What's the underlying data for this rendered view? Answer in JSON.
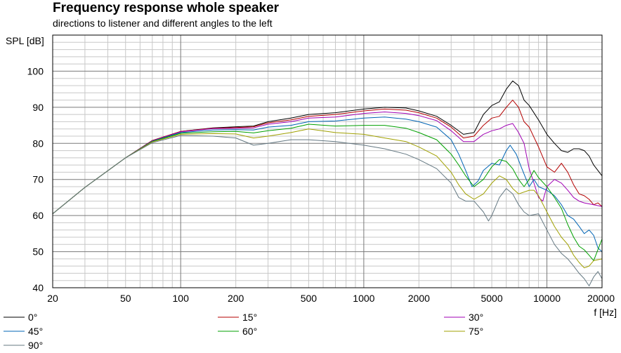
{
  "header": {
    "title": "Frequency response whole speaker",
    "subtitle": "directions to listener and different angles to the left"
  },
  "chart_data": {
    "type": "line",
    "title": "Frequency response whole speaker",
    "subtitle": "directions to listener and different angles to the left",
    "xlabel": "f [Hz]",
    "ylabel": "SPL [dB]",
    "xscale": "log",
    "xlim": [
      20,
      20000
    ],
    "ylim": [
      40,
      110
    ],
    "grid": true,
    "legend_position": "bottom",
    "x_tick_labels": [
      "20",
      "50",
      "100",
      "200",
      "500",
      "1000",
      "2000",
      "5000",
      "10000",
      "20000"
    ],
    "y_tick_labels": [
      "40",
      "50",
      "60",
      "70",
      "80",
      "90",
      "100"
    ],
    "series": [
      {
        "name": "0°",
        "color": "#000000",
        "points": [
          [
            20,
            60.5
          ],
          [
            30,
            67.8
          ],
          [
            50,
            76
          ],
          [
            70,
            80.8
          ],
          [
            100,
            83.3
          ],
          [
            150,
            84.3
          ],
          [
            200,
            84.6
          ],
          [
            250,
            84.8
          ],
          [
            300,
            86
          ],
          [
            400,
            87
          ],
          [
            500,
            88
          ],
          [
            700,
            88.5
          ],
          [
            1000,
            89.5
          ],
          [
            1300,
            90
          ],
          [
            1700,
            89.8
          ],
          [
            2000,
            89
          ],
          [
            2500,
            87.5
          ],
          [
            3000,
            85
          ],
          [
            3500,
            82.5
          ],
          [
            4000,
            83
          ],
          [
            4500,
            88
          ],
          [
            5000,
            90.5
          ],
          [
            5500,
            91.5
          ],
          [
            6000,
            95
          ],
          [
            6500,
            97.3
          ],
          [
            7000,
            96
          ],
          [
            7500,
            92
          ],
          [
            8000,
            90.5
          ],
          [
            9000,
            86.5
          ],
          [
            10000,
            82.5
          ],
          [
            11000,
            80
          ],
          [
            12000,
            78
          ],
          [
            13000,
            77.5
          ],
          [
            14000,
            78.5
          ],
          [
            15000,
            78.5
          ],
          [
            16000,
            78
          ],
          [
            17000,
            76.5
          ],
          [
            18000,
            74
          ],
          [
            20000,
            71
          ]
        ]
      },
      {
        "name": "15°",
        "color": "#b40000",
        "points": [
          [
            20,
            60.5
          ],
          [
            30,
            67.8
          ],
          [
            50,
            76
          ],
          [
            70,
            80.8
          ],
          [
            100,
            83.3
          ],
          [
            150,
            84.2
          ],
          [
            200,
            84.4
          ],
          [
            250,
            84.6
          ],
          [
            300,
            85.7
          ],
          [
            400,
            86.5
          ],
          [
            500,
            87.5
          ],
          [
            700,
            88
          ],
          [
            1000,
            89
          ],
          [
            1300,
            89.5
          ],
          [
            1700,
            89.2
          ],
          [
            2000,
            88.5
          ],
          [
            2500,
            87
          ],
          [
            3000,
            84.5
          ],
          [
            3500,
            81.5
          ],
          [
            4000,
            82
          ],
          [
            4500,
            85
          ],
          [
            5000,
            87
          ],
          [
            5500,
            87.5
          ],
          [
            6000,
            90
          ],
          [
            6500,
            92
          ],
          [
            7000,
            90
          ],
          [
            7500,
            86
          ],
          [
            8000,
            84.5
          ],
          [
            9000,
            79
          ],
          [
            10000,
            73.5
          ],
          [
            11000,
            72
          ],
          [
            12000,
            74.5
          ],
          [
            13000,
            72
          ],
          [
            14000,
            68.5
          ],
          [
            15000,
            66
          ],
          [
            16000,
            65.5
          ],
          [
            17000,
            64.5
          ],
          [
            18000,
            63
          ],
          [
            19000,
            63.5
          ],
          [
            20000,
            62.5
          ]
        ]
      },
      {
        "name": "30°",
        "color": "#a000b4",
        "points": [
          [
            20,
            60.5
          ],
          [
            30,
            67.8
          ],
          [
            50,
            76
          ],
          [
            70,
            80.7
          ],
          [
            100,
            83.2
          ],
          [
            150,
            84.1
          ],
          [
            200,
            84.2
          ],
          [
            250,
            84.3
          ],
          [
            300,
            85.3
          ],
          [
            400,
            86
          ],
          [
            500,
            87
          ],
          [
            700,
            87.3
          ],
          [
            1000,
            88.3
          ],
          [
            1300,
            88.7
          ],
          [
            1700,
            88.3
          ],
          [
            2000,
            87.7
          ],
          [
            2500,
            86.3
          ],
          [
            3000,
            83.5
          ],
          [
            3500,
            80.5
          ],
          [
            4000,
            80.5
          ],
          [
            4500,
            82.5
          ],
          [
            5000,
            83.5
          ],
          [
            5500,
            84
          ],
          [
            6000,
            85
          ],
          [
            6500,
            85.5
          ],
          [
            7000,
            83
          ],
          [
            7500,
            80
          ],
          [
            8000,
            73
          ],
          [
            8500,
            69
          ],
          [
            9000,
            65
          ],
          [
            9500,
            64
          ],
          [
            10000,
            68
          ],
          [
            11000,
            70
          ],
          [
            12000,
            69
          ],
          [
            13000,
            67
          ],
          [
            14000,
            65
          ],
          [
            15000,
            64
          ],
          [
            16000,
            63.5
          ],
          [
            18000,
            63
          ],
          [
            20000,
            62.5
          ]
        ]
      },
      {
        "name": "45°",
        "color": "#0064b4",
        "points": [
          [
            20,
            60.5
          ],
          [
            30,
            67.8
          ],
          [
            50,
            76
          ],
          [
            70,
            80.6
          ],
          [
            100,
            83
          ],
          [
            150,
            83.7
          ],
          [
            200,
            83.8
          ],
          [
            250,
            83.7
          ],
          [
            300,
            84.5
          ],
          [
            400,
            85
          ],
          [
            500,
            86
          ],
          [
            700,
            86.2
          ],
          [
            1000,
            87
          ],
          [
            1300,
            87.3
          ],
          [
            1700,
            86.7
          ],
          [
            2000,
            86
          ],
          [
            2500,
            84.5
          ],
          [
            3000,
            81
          ],
          [
            3300,
            77
          ],
          [
            3600,
            72.5
          ],
          [
            3900,
            68
          ],
          [
            4200,
            69.5
          ],
          [
            4500,
            72.5
          ],
          [
            5000,
            74.5
          ],
          [
            5500,
            74
          ],
          [
            6000,
            78
          ],
          [
            6300,
            79.5
          ],
          [
            6800,
            77
          ],
          [
            7300,
            73
          ],
          [
            8000,
            68
          ],
          [
            8500,
            70
          ],
          [
            9000,
            68
          ],
          [
            10000,
            67
          ],
          [
            11000,
            65.5
          ],
          [
            12000,
            63
          ],
          [
            13000,
            60
          ],
          [
            14000,
            59
          ],
          [
            15000,
            57
          ],
          [
            16000,
            55
          ],
          [
            17000,
            56
          ],
          [
            18000,
            54.5
          ],
          [
            19000,
            51
          ],
          [
            20000,
            50
          ]
        ]
      },
      {
        "name": "60°",
        "color": "#00a000",
        "points": [
          [
            20,
            60.5
          ],
          [
            30,
            67.8
          ],
          [
            50,
            76
          ],
          [
            70,
            80.5
          ],
          [
            100,
            82.8
          ],
          [
            150,
            83.2
          ],
          [
            200,
            83.3
          ],
          [
            250,
            82.9
          ],
          [
            300,
            83.5
          ],
          [
            400,
            84.2
          ],
          [
            500,
            85.3
          ],
          [
            700,
            84.8
          ],
          [
            1000,
            85
          ],
          [
            1300,
            85
          ],
          [
            1700,
            84.2
          ],
          [
            2000,
            83
          ],
          [
            2500,
            81
          ],
          [
            3000,
            77
          ],
          [
            3300,
            74
          ],
          [
            3600,
            71
          ],
          [
            4000,
            68
          ],
          [
            4500,
            70
          ],
          [
            5000,
            73.5
          ],
          [
            5500,
            75.5
          ],
          [
            6000,
            75
          ],
          [
            6500,
            73
          ],
          [
            7000,
            70
          ],
          [
            7500,
            68
          ],
          [
            8000,
            70
          ],
          [
            8500,
            72.5
          ],
          [
            9000,
            70.5
          ],
          [
            10000,
            68
          ],
          [
            11000,
            65
          ],
          [
            12000,
            62
          ],
          [
            13000,
            57.5
          ],
          [
            14000,
            54
          ],
          [
            15000,
            51.5
          ],
          [
            16000,
            50.5
          ],
          [
            17000,
            49
          ],
          [
            18000,
            47.5
          ],
          [
            20000,
            53.5
          ]
        ]
      },
      {
        "name": "75°",
        "color": "#a0a000",
        "points": [
          [
            20,
            60.5
          ],
          [
            30,
            67.8
          ],
          [
            50,
            76
          ],
          [
            70,
            80.4
          ],
          [
            100,
            82.5
          ],
          [
            150,
            82.7
          ],
          [
            200,
            82.6
          ],
          [
            250,
            81.5
          ],
          [
            300,
            82
          ],
          [
            400,
            83
          ],
          [
            500,
            84
          ],
          [
            700,
            83
          ],
          [
            1000,
            82.5
          ],
          [
            1300,
            81.5
          ],
          [
            1700,
            80.5
          ],
          [
            2000,
            79
          ],
          [
            2500,
            76.5
          ],
          [
            3000,
            72
          ],
          [
            3300,
            68.5
          ],
          [
            3600,
            66
          ],
          [
            4000,
            64.5
          ],
          [
            4500,
            66
          ],
          [
            5000,
            69
          ],
          [
            5500,
            71
          ],
          [
            6000,
            70
          ],
          [
            6500,
            67.5
          ],
          [
            7000,
            66
          ],
          [
            8000,
            67
          ],
          [
            8500,
            67
          ],
          [
            9000,
            65.5
          ],
          [
            10000,
            61
          ],
          [
            11000,
            57
          ],
          [
            12000,
            54
          ],
          [
            13000,
            52
          ],
          [
            14000,
            49
          ],
          [
            15000,
            47
          ],
          [
            16000,
            45.5
          ],
          [
            17000,
            46
          ],
          [
            18000,
            47.5
          ],
          [
            20000,
            48
          ]
        ]
      },
      {
        "name": "90°",
        "color": "#647882",
        "points": [
          [
            20,
            60.5
          ],
          [
            30,
            67.8
          ],
          [
            50,
            76
          ],
          [
            70,
            80.2
          ],
          [
            100,
            82.2
          ],
          [
            150,
            82
          ],
          [
            200,
            81.5
          ],
          [
            250,
            79.5
          ],
          [
            300,
            80
          ],
          [
            400,
            81
          ],
          [
            500,
            81
          ],
          [
            700,
            80.5
          ],
          [
            1000,
            79.5
          ],
          [
            1300,
            78.5
          ],
          [
            1700,
            77
          ],
          [
            2000,
            75.5
          ],
          [
            2500,
            73
          ],
          [
            3000,
            69
          ],
          [
            3300,
            65
          ],
          [
            3600,
            64
          ],
          [
            4000,
            64
          ],
          [
            4500,
            61
          ],
          [
            4800,
            58.5
          ],
          [
            5000,
            60
          ],
          [
            5500,
            65
          ],
          [
            6000,
            67.5
          ],
          [
            6500,
            66
          ],
          [
            7000,
            63
          ],
          [
            7500,
            61
          ],
          [
            8000,
            60
          ],
          [
            9000,
            60.5
          ],
          [
            10000,
            56
          ],
          [
            11000,
            52
          ],
          [
            12000,
            49.5
          ],
          [
            13000,
            48
          ],
          [
            14000,
            46
          ],
          [
            15000,
            44
          ],
          [
            16000,
            42.5
          ],
          [
            17000,
            40.5
          ],
          [
            18000,
            43
          ],
          [
            19000,
            44.5
          ],
          [
            20000,
            42.5
          ]
        ]
      }
    ]
  }
}
